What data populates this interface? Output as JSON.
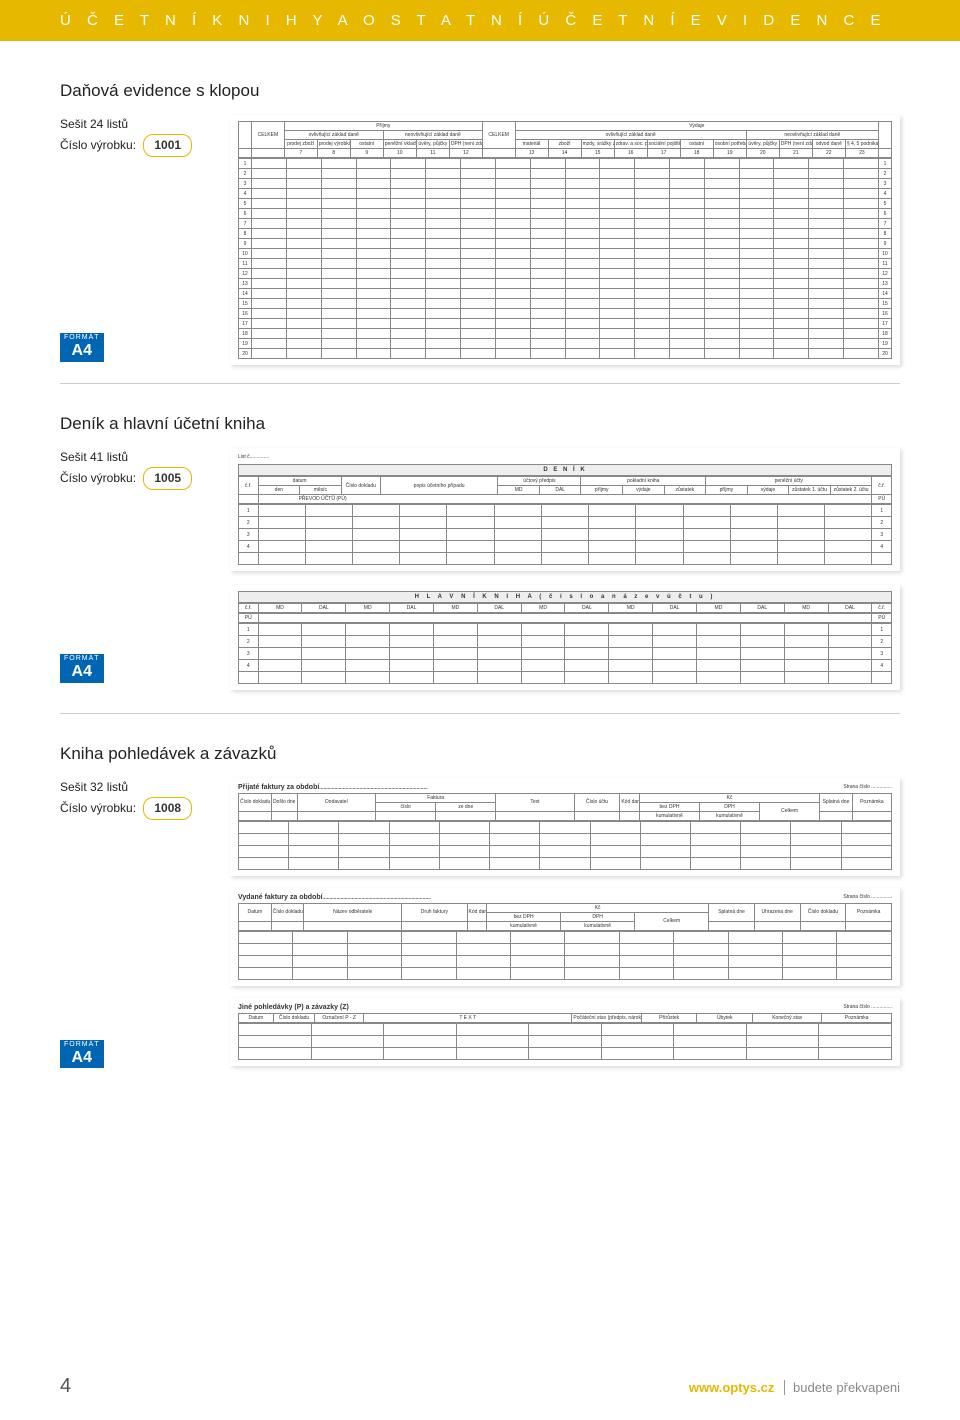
{
  "banner": "Ú Č E T N Í   K N I H Y   A   O S T A T N Í   Ú Č E T N Í   E V I D E N C E",
  "badge": {
    "top": "FORMÁT",
    "bottom": "A4"
  },
  "sec1": {
    "title": "Daňová evidence s klopou",
    "sheets": "Sešit 24 listů",
    "code_label": "Číslo výrobku:",
    "code": "1001",
    "form": {
      "top_l": "Příjmy",
      "top_r": "Výdaje",
      "ovl_l": "ovlivňující základ daně",
      "novl_l": "neovlivňující základ daně",
      "ovl_r": "ovlivňující základ daně",
      "novl_r": "neovlivňující základ daně",
      "celkem": "CELKEM",
      "cols_l": [
        "prodej zboží",
        "prodej výrobků a služeb",
        "ostatní",
        "peněžní vklady",
        "úvěry, půjčky",
        "DPH (není zdaň.)"
      ],
      "cols_r": [
        "materiál",
        "zboží",
        "mzdy, srážky z mezd",
        "zdrav. a soc. pojištění zaměstnanců",
        "sociální pojištění  podnikat.",
        "ostatní",
        "osobní potřeba",
        "úvěry, půjčky",
        "DPH (není zdaň.)",
        "odvod daně",
        "§ 4, 5 podnikat. nezdaňované"
      ],
      "row_idx": [
        1,
        2,
        3,
        4,
        5,
        6,
        7,
        8,
        9,
        10,
        11,
        12,
        13,
        14,
        15,
        16,
        17,
        18,
        19,
        20
      ],
      "col_idx": [
        "7",
        "8",
        "9",
        "10",
        "11",
        "12",
        "13",
        "14",
        "15",
        "16",
        "17",
        "18",
        "19",
        "20",
        "21",
        "22",
        "23"
      ]
    }
  },
  "sec2": {
    "title": "Deník a hlavní účetní kniha",
    "sheets": "Sešit 41 listů",
    "code_label": "Číslo výrobku:",
    "code": "1005",
    "denik": {
      "list": "List č..............",
      "header": "D E N Í K",
      "grp": [
        "datum",
        "Číslo dokladu",
        "popis účetního případu",
        "účtový předpis",
        "pokladní kniha",
        "peněžní účty"
      ],
      "cols": [
        "č.ř.",
        "den",
        "měsíc",
        "",
        "",
        "MD",
        "DAL",
        "příjmy",
        "výdaje",
        "zůstatek",
        "příjmy",
        "výdaje",
        "zůstatek 1. účtu",
        "zůstatek 2. účtu",
        "č.ř."
      ],
      "prevod": "PŘEVOD ÚČTŮ (PÚ)",
      "pu": "PÚ",
      "rows": [
        "1",
        "2",
        "3",
        "4",
        ""
      ]
    },
    "hk": {
      "header": "H L A V N Í   K N I H A   ( č í s l o   a   n á z e v   ú č t u )",
      "cols": [
        "č.ř.",
        "MD",
        "DAL",
        "MD",
        "DAL",
        "MD",
        "DAL",
        "MD",
        "DAL",
        "MD",
        "DAL",
        "MD",
        "DAL",
        "MD",
        "DAL",
        "č.ř."
      ],
      "pu": "PÚ",
      "rows": [
        "1",
        "2",
        "3",
        "4",
        ""
      ]
    }
  },
  "sec3": {
    "title": "Kniha pohledávek a závazků",
    "sheets": "Sešit 32 listů",
    "code_label": "Číslo výrobku:",
    "code": "1008",
    "t1": {
      "title": "Přijaté faktury za období",
      "strana": "Strana číslo ...............",
      "cols": [
        "Číslo dokladu",
        "Došlo dne",
        "Dodavatel",
        "Faktura",
        "",
        "Text",
        "Číslo účtu",
        "Kód daně",
        "Kč",
        "",
        "",
        "Splatná dne",
        "Poznámka"
      ],
      "sub_f": [
        "číslo",
        "ze dne"
      ],
      "sub_k": [
        "bez DPH",
        "DPH",
        "Celkem"
      ],
      "sub_k2": [
        "kumulativně",
        "kumulativně",
        ""
      ]
    },
    "t2": {
      "title": "Vydané faktury za období",
      "strana": "Strana číslo ...............",
      "cols": [
        "Datum",
        "Číslo dokladu",
        "Název odběratele",
        "Druh faktury",
        "Kód daně",
        "Kč",
        "",
        "",
        "Splatná dne",
        "Uhrazena dne",
        "Číslo dokladu",
        "Poznámka"
      ],
      "sub_k": [
        "bez DPH",
        "DPH",
        "Celkem"
      ],
      "sub_k2": [
        "kumulativně",
        "kumulativně",
        ""
      ]
    },
    "t3": {
      "title": "Jiné pohledávky (P) a závazky (Z)",
      "strana": "Strana číslo ...............",
      "cols": [
        "Datum",
        "Číslo dokladu",
        "Označení P - Z",
        "T E X T",
        "Počáteční stav (předpis, nárok)",
        "Přírůstek",
        "Úbytek",
        "Konečný stav",
        "Poznámka"
      ]
    }
  },
  "footer": {
    "page": "4",
    "url": "www.optys.cz",
    "tag": "budete překvapeni"
  }
}
